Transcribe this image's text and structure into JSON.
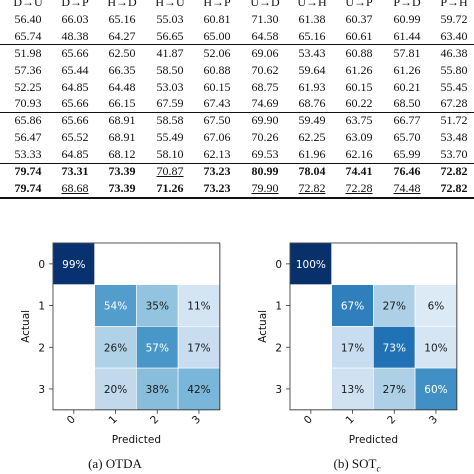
{
  "table": {
    "header": [
      "D→U",
      "D→P",
      "H→D",
      "H→U",
      "H→P",
      "U→D",
      "U→H",
      "U→P",
      "P→D",
      "P→H"
    ],
    "groups": [
      [
        [
          "56.40",
          "66.03",
          "65.16",
          "55.03",
          "60.81",
          "71.30",
          "61.38",
          "60.37",
          "60.99",
          "59.72"
        ],
        [
          "65.74",
          "48.38",
          "64.27",
          "56.65",
          "65.00",
          "64.58",
          "65.16",
          "60.61",
          "61.44",
          "63.40"
        ]
      ],
      [
        [
          "51.98",
          "65.66",
          "62.50",
          "41.87",
          "52.06",
          "69.06",
          "53.43",
          "60.88",
          "57.81",
          "46.38"
        ],
        [
          "57.36",
          "65.44",
          "66.35",
          "58.50",
          "60.88",
          "70.62",
          "59.64",
          "61.26",
          "61.26",
          "55.80"
        ],
        [
          "52.25",
          "64.85",
          "64.48",
          "53.03",
          "60.15",
          "68.75",
          "61.93",
          "60.15",
          "60.21",
          "55.45"
        ],
        [
          "70.93",
          "65.66",
          "66.15",
          "67.59",
          "67.43",
          "74.69",
          "68.76",
          "60.22",
          "68.50",
          "67.28"
        ]
      ],
      [
        [
          "65.86",
          "65.66",
          "68.91",
          "58.58",
          "67.50",
          "69.90",
          "59.49",
          "63.75",
          "66.77",
          "51.72"
        ],
        [
          "56.47",
          "65.52",
          "68.91",
          "55.49",
          "67.06",
          "70.26",
          "62.25",
          "63.09",
          "65.70",
          "53.48"
        ],
        [
          "53.33",
          "64.85",
          "68.12",
          "58.10",
          "62.13",
          "69.53",
          "61.96",
          "62.16",
          "65.99",
          "53.70"
        ]
      ],
      [
        [
          "79.74",
          "73.31",
          "73.39",
          "70.87",
          "73.23",
          "80.99",
          "78.04",
          "74.41",
          "76.46",
          "72.82"
        ],
        [
          "79.74",
          "68.68",
          "73.39",
          "71.26",
          "73.23",
          "79.90",
          "72.82",
          "72.28",
          "74.48",
          "72.82"
        ]
      ]
    ],
    "styles": {
      "bold": [
        "3.0.0",
        "3.0.1",
        "3.0.2",
        "3.0.4",
        "3.0.5",
        "3.0.6",
        "3.0.7",
        "3.0.8",
        "3.0.9",
        "3.1.0",
        "3.1.2",
        "3.1.3",
        "3.1.4",
        "3.1.9"
      ],
      "underline": [
        "3.0.3",
        "3.1.1",
        "3.1.5",
        "3.1.6",
        "3.1.7",
        "3.1.8"
      ]
    }
  },
  "figures": [
    {
      "caption": "(a) OTDA",
      "x_label": "Predicted",
      "y_label": "Actual",
      "x_ticks": [
        "0",
        "1",
        "2",
        "3"
      ],
      "y_ticks": [
        "0",
        "1",
        "2",
        "3"
      ],
      "chart_data": {
        "type": "heatmap",
        "rows": [
          "0",
          "1",
          "2",
          "3"
        ],
        "cols": [
          "0",
          "1",
          "2",
          "3"
        ],
        "values": [
          [
            99,
            null,
            null,
            null
          ],
          [
            null,
            54,
            35,
            11
          ],
          [
            null,
            26,
            57,
            17
          ],
          [
            null,
            20,
            38,
            42
          ]
        ],
        "cell_labels": [
          [
            "99%",
            "",
            "",
            ""
          ],
          [
            "",
            "54%",
            "35%",
            "11%"
          ],
          [
            "",
            "26%",
            "57%",
            "17%"
          ],
          [
            "",
            "20%",
            "38%",
            "42%"
          ]
        ],
        "colormap": "Blues",
        "xlabel": "Predicted",
        "ylabel": "Actual"
      }
    },
    {
      "caption": "(b) SOT",
      "caption_sub": "c",
      "x_label": "Predicted",
      "y_label": "Actual",
      "x_ticks": [
        "0",
        "1",
        "2",
        "3"
      ],
      "y_ticks": [
        "0",
        "1",
        "2",
        "3"
      ],
      "chart_data": {
        "type": "heatmap",
        "rows": [
          "0",
          "1",
          "2",
          "3"
        ],
        "cols": [
          "0",
          "1",
          "2",
          "3"
        ],
        "values": [
          [
            100,
            null,
            null,
            null
          ],
          [
            null,
            67,
            27,
            6
          ],
          [
            null,
            17,
            73,
            10
          ],
          [
            null,
            13,
            27,
            60
          ]
        ],
        "cell_labels": [
          [
            "100%",
            "",
            "",
            ""
          ],
          [
            "",
            "67%",
            "27%",
            "6%"
          ],
          [
            "",
            "17%",
            "73%",
            "10%"
          ],
          [
            "",
            "13%",
            "27%",
            "60%"
          ]
        ],
        "colormap": "Blues",
        "xlabel": "Predicted",
        "ylabel": "Actual"
      }
    }
  ]
}
